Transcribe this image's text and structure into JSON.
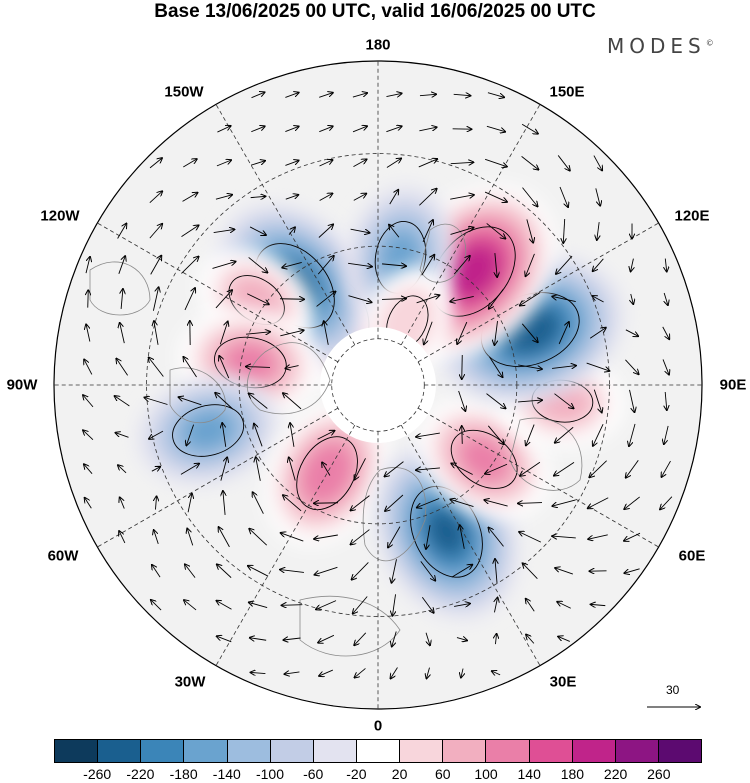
{
  "title": "Base 13/06/2025 00 UTC, valid 16/06/2025 00 UTC",
  "brand": "MODES",
  "brand_mark": "©",
  "longitude_labels": [
    "180",
    "150E",
    "120E",
    "90E",
    "60E",
    "30E",
    "0",
    "30W",
    "60W",
    "90W",
    "120W",
    "150W"
  ],
  "wind_reference": {
    "value": "30"
  },
  "colorbar": {
    "labels": [
      "-260",
      "-220",
      "-180",
      "-140",
      "-100",
      "-60",
      "-20",
      "20",
      "60",
      "100",
      "140",
      "180",
      "220",
      "260"
    ],
    "colors": [
      "#0d3a5c",
      "#1a5f8f",
      "#3b85b8",
      "#6aa3cf",
      "#9dbddf",
      "#c2cde6",
      "#e3e3f0",
      "#ffffff",
      "#f8d6dc",
      "#f2afc0",
      "#ea7fa8",
      "#df4f95",
      "#c0248a",
      "#8d1583",
      "#5c0a70"
    ]
  },
  "anomalies": [
    {
      "lat": 72,
      "lon": -150,
      "value": 180
    },
    {
      "lat": 62,
      "lon": -140,
      "value": -220
    },
    {
      "lat": 58,
      "lon": -125,
      "value": 100
    },
    {
      "lat": 62,
      "lon": -100,
      "value": 140
    },
    {
      "lat": 52,
      "lon": -75,
      "value": -140
    },
    {
      "lat": 68,
      "lon": -30,
      "value": 160
    },
    {
      "lat": 55,
      "lon": 25,
      "value": -220
    },
    {
      "lat": 62,
      "lon": 55,
      "value": 140
    },
    {
      "lat": 50,
      "lon": 85,
      "value": 100
    },
    {
      "lat": 55,
      "lon": 110,
      "value": -240
    },
    {
      "lat": 58,
      "lon": 140,
      "value": 240
    },
    {
      "lat": 62,
      "lon": 170,
      "value": -140
    },
    {
      "lat": 75,
      "lon": 155,
      "value": 80
    }
  ]
}
